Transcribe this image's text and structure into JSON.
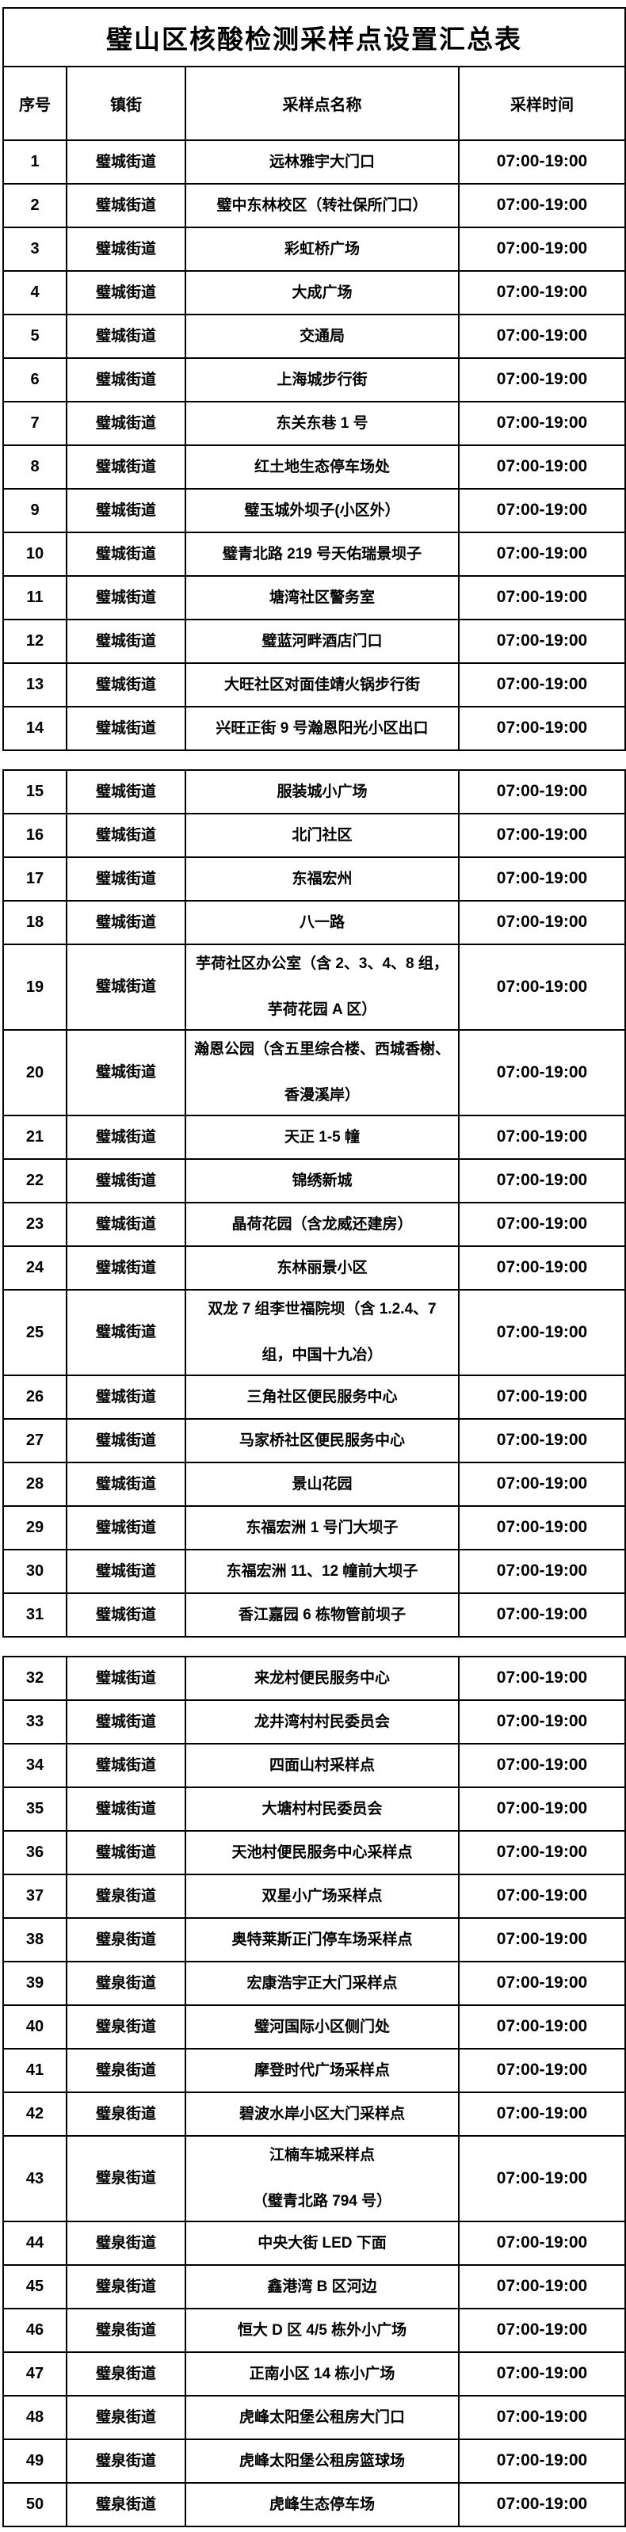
{
  "title": "璧山区核酸检测采样点设置汇总表",
  "columns": {
    "seq": "序号",
    "street": "镇街",
    "site": "采样点名称",
    "time": "采样时间"
  },
  "colors": {
    "background": "#ffffff",
    "border": "#000000",
    "text": "#000000"
  },
  "table": {
    "sections": [
      {
        "rows": [
          {
            "n": "1",
            "street": "璧城街道",
            "site": [
              "远林雅宇大门口"
            ],
            "time": "07:00-19:00"
          },
          {
            "n": "2",
            "street": "璧城街道",
            "site": [
              "璧中东林校区（转社保所门口）"
            ],
            "time": "07:00-19:00"
          },
          {
            "n": "3",
            "street": "璧城街道",
            "site": [
              "彩虹桥广场"
            ],
            "time": "07:00-19:00"
          },
          {
            "n": "4",
            "street": "璧城街道",
            "site": [
              "大成广场"
            ],
            "time": "07:00-19:00"
          },
          {
            "n": "5",
            "street": "璧城街道",
            "site": [
              "交通局"
            ],
            "time": "07:00-19:00"
          },
          {
            "n": "6",
            "street": "璧城街道",
            "site": [
              "上海城步行街"
            ],
            "time": "07:00-19:00"
          },
          {
            "n": "7",
            "street": "璧城街道",
            "site": [
              "东关东巷 1 号"
            ],
            "time": "07:00-19:00"
          },
          {
            "n": "8",
            "street": "璧城街道",
            "site": [
              "红土地生态停车场处"
            ],
            "time": "07:00-19:00"
          },
          {
            "n": "9",
            "street": "璧城街道",
            "site": [
              "璧玉城外坝子(小区外）"
            ],
            "time": "07:00-19:00"
          },
          {
            "n": "10",
            "street": "璧城街道",
            "site": [
              "璧青北路 219 号天佑瑞景坝子"
            ],
            "time": "07:00-19:00"
          },
          {
            "n": "11",
            "street": "璧城街道",
            "site": [
              "塘湾社区警务室"
            ],
            "time": "07:00-19:00"
          },
          {
            "n": "12",
            "street": "璧城街道",
            "site": [
              "璧蓝河畔酒店门口"
            ],
            "time": "07:00-19:00"
          },
          {
            "n": "13",
            "street": "璧城街道",
            "site": [
              "大旺社区对面佳靖火锅步行街"
            ],
            "time": "07:00-19:00"
          },
          {
            "n": "14",
            "street": "璧城街道",
            "site": [
              "兴旺正街 9 号瀚恩阳光小区出口"
            ],
            "time": "07:00-19:00"
          }
        ]
      },
      {
        "rows": [
          {
            "n": "15",
            "street": "璧城街道",
            "site": [
              "服装城小广场"
            ],
            "time": "07:00-19:00"
          },
          {
            "n": "16",
            "street": "璧城街道",
            "site": [
              "北门社区"
            ],
            "time": "07:00-19:00"
          },
          {
            "n": "17",
            "street": "璧城街道",
            "site": [
              "东福宏州"
            ],
            "time": "07:00-19:00"
          },
          {
            "n": "18",
            "street": "璧城街道",
            "site": [
              "八一路"
            ],
            "time": "07:00-19:00"
          },
          {
            "n": "19",
            "street": "璧城街道",
            "site": [
              "芋荷社区办公室（含 2、3、4、8 组，",
              "芋荷花园 A 区）"
            ],
            "time": "07:00-19:00"
          },
          {
            "n": "20",
            "street": "璧城街道",
            "site": [
              "瀚恩公园（含五里综合楼、西城香榭、",
              "香漫溪岸）"
            ],
            "time": "07:00-19:00"
          },
          {
            "n": "21",
            "street": "璧城街道",
            "site": [
              "天正 1-5 幢"
            ],
            "time": "07:00-19:00"
          },
          {
            "n": "22",
            "street": "璧城街道",
            "site": [
              "锦绣新城"
            ],
            "time": "07:00-19:00"
          },
          {
            "n": "23",
            "street": "璧城街道",
            "site": [
              "晶荷花园（含龙威还建房）"
            ],
            "time": "07:00-19:00"
          },
          {
            "n": "24",
            "street": "璧城街道",
            "site": [
              "东林丽景小区"
            ],
            "time": "07:00-19:00"
          },
          {
            "n": "25",
            "street": "璧城街道",
            "site": [
              "双龙 7 组李世福院坝（含 1.2.4、7",
              "组，中国十九冶）"
            ],
            "time": "07:00-19:00"
          },
          {
            "n": "26",
            "street": "璧城街道",
            "site": [
              "三角社区便民服务中心"
            ],
            "time": "07:00-19:00"
          },
          {
            "n": "27",
            "street": "璧城街道",
            "site": [
              "马家桥社区便民服务中心"
            ],
            "time": "07:00-19:00"
          },
          {
            "n": "28",
            "street": "璧城街道",
            "site": [
              "景山花园"
            ],
            "time": "07:00-19:00"
          },
          {
            "n": "29",
            "street": "璧城街道",
            "site": [
              "东福宏洲 1 号门大坝子"
            ],
            "time": "07:00-19:00"
          },
          {
            "n": "30",
            "street": "璧城街道",
            "site": [
              "东福宏洲 11、12 幢前大坝子"
            ],
            "time": "07:00-19:00"
          },
          {
            "n": "31",
            "street": "璧城街道",
            "site": [
              "香江嘉园 6 栋物管前坝子"
            ],
            "time": "07:00-19:00"
          }
        ]
      },
      {
        "rows": [
          {
            "n": "32",
            "street": "璧城街道",
            "site": [
              "来龙村便民服务中心"
            ],
            "time": "07:00-19:00"
          },
          {
            "n": "33",
            "street": "璧城街道",
            "site": [
              "龙井湾村村民委员会"
            ],
            "time": "07:00-19:00"
          },
          {
            "n": "34",
            "street": "璧城街道",
            "site": [
              "四面山村采样点"
            ],
            "time": "07:00-19:00"
          },
          {
            "n": "35",
            "street": "璧城街道",
            "site": [
              "大塘村村民委员会"
            ],
            "time": "07:00-19:00"
          },
          {
            "n": "36",
            "street": "璧城街道",
            "site": [
              "天池村便民服务中心采样点"
            ],
            "time": "07:00-19:00"
          },
          {
            "n": "37",
            "street": "璧泉街道",
            "site": [
              "双星小广场采样点"
            ],
            "time": "07:00-19:00"
          },
          {
            "n": "38",
            "street": "璧泉街道",
            "site": [
              "奥特莱斯正门停车场采样点"
            ],
            "time": "07:00-19:00"
          },
          {
            "n": "39",
            "street": "璧泉街道",
            "site": [
              "宏康浩宇正大门采样点"
            ],
            "time": "07:00-19:00"
          },
          {
            "n": "40",
            "street": "璧泉街道",
            "site": [
              "璧河国际小区侧门处"
            ],
            "time": "07:00-19:00"
          },
          {
            "n": "41",
            "street": "璧泉街道",
            "site": [
              "摩登时代广场采样点"
            ],
            "time": "07:00-19:00"
          },
          {
            "n": "42",
            "street": "璧泉街道",
            "site": [
              "碧波水岸小区大门采样点"
            ],
            "time": "07:00-19:00"
          },
          {
            "n": "43",
            "street": "璧泉街道",
            "site": [
              "江楠车城采样点",
              "（璧青北路 794 号）"
            ],
            "time": "07:00-19:00"
          },
          {
            "n": "44",
            "street": "璧泉街道",
            "site": [
              "中央大街 LED 下面"
            ],
            "time": "07:00-19:00"
          },
          {
            "n": "45",
            "street": "璧泉街道",
            "site": [
              "鑫港湾 B 区河边"
            ],
            "time": "07:00-19:00"
          },
          {
            "n": "46",
            "street": "璧泉街道",
            "site": [
              "恒大 D 区 4/5 栋外小广场"
            ],
            "time": "07:00-19:00"
          },
          {
            "n": "47",
            "street": "璧泉街道",
            "site": [
              "正南小区 14 栋小广场"
            ],
            "time": "07:00-19:00"
          },
          {
            "n": "48",
            "street": "璧泉街道",
            "site": [
              "虎峰太阳堡公租房大门口"
            ],
            "time": "07:00-19:00"
          },
          {
            "n": "49",
            "street": "璧泉街道",
            "site": [
              "虎峰太阳堡公租房篮球场"
            ],
            "time": "07:00-19:00"
          },
          {
            "n": "50",
            "street": "璧泉街道",
            "site": [
              "虎峰生态停车场"
            ],
            "time": "07:00-19:00"
          }
        ]
      }
    ]
  }
}
